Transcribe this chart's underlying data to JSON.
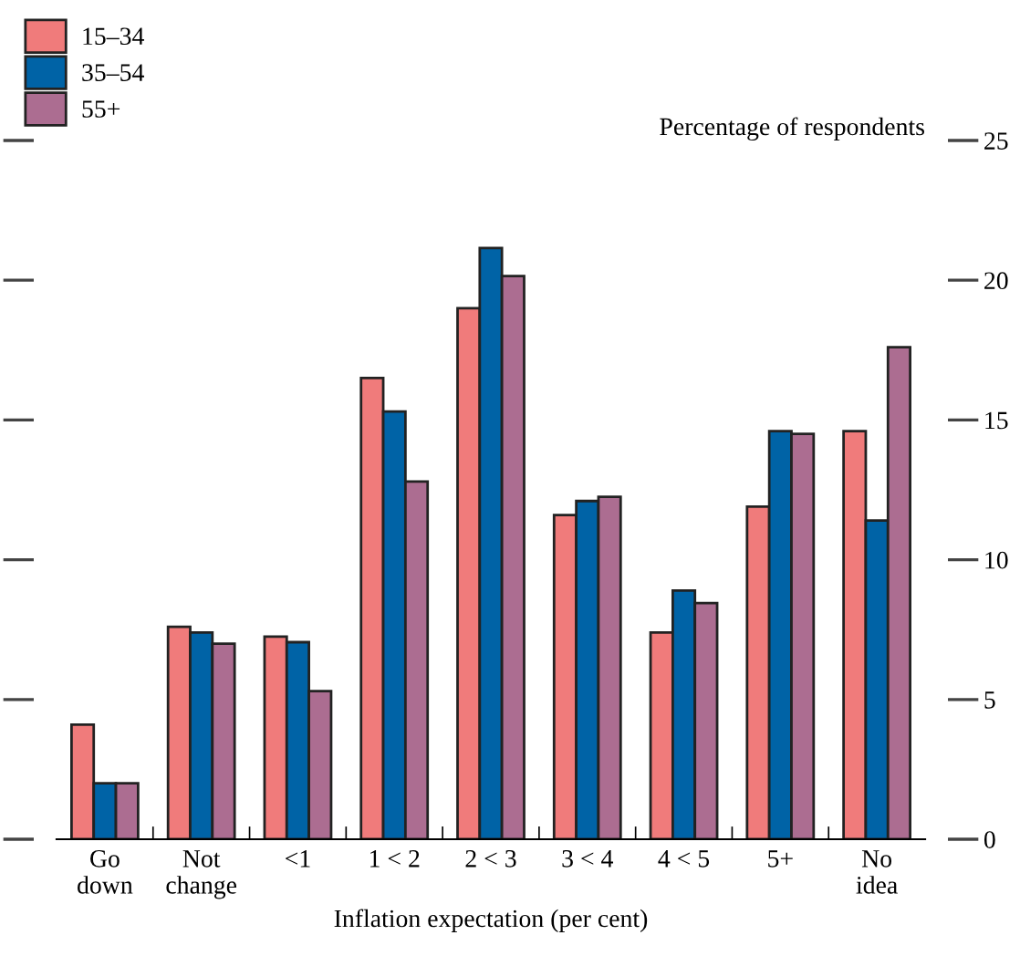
{
  "chart_data": {
    "type": "bar",
    "xlabel": "Inflation expectation (per cent)",
    "ylabel": "Percentage of respondents",
    "categories": [
      "Go\ndown",
      "Not\nchange",
      "<1",
      "1 < 2",
      "2 < 3",
      "3 < 4",
      "4 < 5",
      "5+",
      "No\nidea"
    ],
    "series": [
      {
        "name": "15–34",
        "color": "#f07b7b",
        "values": [
          4.1,
          7.6,
          7.25,
          16.5,
          19.0,
          11.6,
          7.4,
          11.9,
          14.6
        ]
      },
      {
        "name": "35–54",
        "color": "#0063a6",
        "values": [
          2.0,
          7.4,
          7.05,
          15.3,
          21.15,
          12.1,
          8.9,
          14.6,
          11.4
        ]
      },
      {
        "name": "55+",
        "color": "#ac6d91",
        "values": [
          2.0,
          7.0,
          5.3,
          12.8,
          20.15,
          12.25,
          8.45,
          14.5,
          17.6
        ]
      }
    ],
    "ylim": [
      0,
      25
    ],
    "yticks": [
      0,
      5,
      10,
      15,
      20,
      25
    ],
    "grid": false,
    "legend": "top left"
  }
}
